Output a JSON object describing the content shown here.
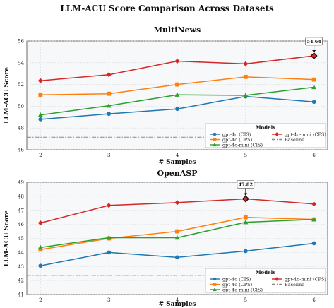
{
  "title": "LLM-ACU Score Comparison Across Datasets",
  "chart_data": [
    {
      "type": "line",
      "title": "MultiNews",
      "xlabel": "# Samples",
      "ylabel": "LLM-ACU Score",
      "x": [
        2,
        3,
        4,
        5,
        6
      ],
      "ylim": [
        46,
        56
      ],
      "yticks": [
        46,
        48,
        50,
        52,
        54,
        56
      ],
      "grid": true,
      "legend_title": "Models",
      "legend_position": "bottom-right",
      "series": [
        {
          "name": "gpt-4o (CIS)",
          "color": "#1f77b4",
          "marker": "circle",
          "values": [
            48.8,
            49.3,
            49.75,
            50.9,
            50.4
          ]
        },
        {
          "name": "gpt-4o (CPS)",
          "color": "#ff7f0e",
          "marker": "square",
          "values": [
            51.05,
            51.15,
            52.0,
            52.7,
            52.45
          ]
        },
        {
          "name": "gpt-4o-mini (CIS)",
          "color": "#2ca02c",
          "marker": "triangle",
          "values": [
            49.2,
            50.05,
            51.05,
            51.0,
            51.75
          ]
        },
        {
          "name": "gpt-4o-mini (CPS)",
          "color": "#d62728",
          "marker": "diamond",
          "values": [
            52.35,
            52.9,
            54.15,
            53.9,
            54.64
          ]
        }
      ],
      "baseline": {
        "name": "Baseline",
        "value": 47.15,
        "color": "#888888"
      },
      "annotation": {
        "text": "54.64",
        "x": 6,
        "y": 54.64
      }
    },
    {
      "type": "line",
      "title": "OpenASP",
      "xlabel": "# Samples",
      "ylabel": "LLM-ACU Score",
      "x": [
        2,
        3,
        4,
        5,
        6
      ],
      "ylim": [
        41,
        49
      ],
      "yticks": [
        41,
        42,
        43,
        44,
        45,
        46,
        47,
        48,
        49
      ],
      "grid": true,
      "legend_title": "Models",
      "legend_position": "bottom-right",
      "series": [
        {
          "name": "gpt-4o (CIS)",
          "color": "#1f77b4",
          "marker": "circle",
          "values": [
            43.05,
            44.0,
            43.65,
            44.1,
            44.65
          ]
        },
        {
          "name": "gpt-4o (CPS)",
          "color": "#ff7f0e",
          "marker": "square",
          "values": [
            44.2,
            45.0,
            45.5,
            46.5,
            46.35
          ]
        },
        {
          "name": "gpt-4o-mini (CIS)",
          "color": "#2ca02c",
          "marker": "triangle",
          "values": [
            44.35,
            45.05,
            45.05,
            46.15,
            46.35
          ]
        },
        {
          "name": "gpt-4o-mini (CPS)",
          "color": "#d62728",
          "marker": "diamond",
          "values": [
            46.1,
            47.35,
            47.55,
            47.82,
            47.45
          ]
        }
      ],
      "baseline": {
        "name": "Baseline",
        "value": 42.35,
        "color": "#888888"
      },
      "annotation": {
        "text": "47.82",
        "x": 5,
        "y": 47.82
      }
    }
  ]
}
